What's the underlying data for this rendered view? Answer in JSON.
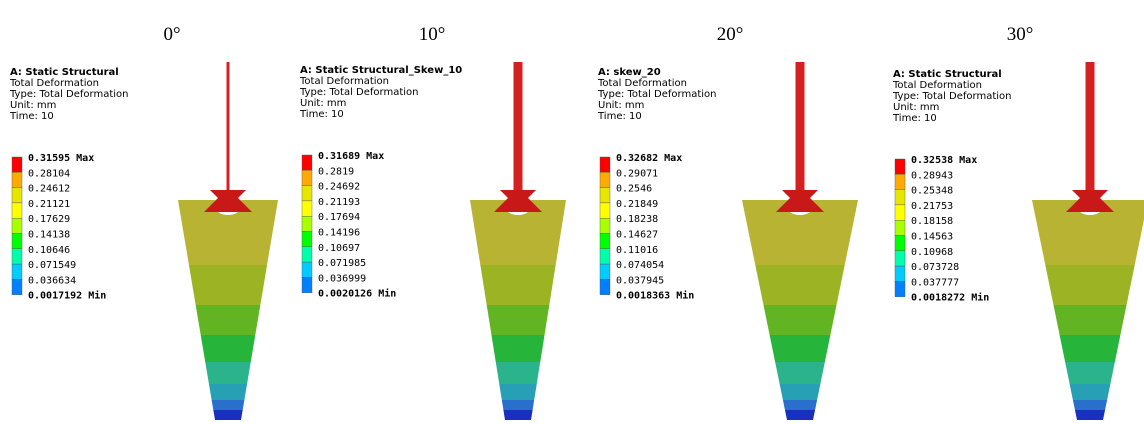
{
  "panels": [
    {
      "angle": "0°",
      "title": "A: Static Structural",
      "lines": [
        "Total Deformation",
        "Type: Total Deformation",
        "Unit: mm",
        "Time: 10"
      ],
      "legend": [
        "0.31595 Max",
        "0.28104",
        "0.24612",
        "0.21121",
        "0.17629",
        "0.14138",
        "0.10646",
        "0.071549",
        "0.036634",
        "0.0017192 Min"
      ]
    },
    {
      "angle": "10°",
      "title": "A: Static Structural_Skew_10",
      "lines": [
        "Total Deformation",
        "Type: Total Deformation",
        "Unit: mm",
        "Time: 10"
      ],
      "legend": [
        "0.31689 Max",
        "0.2819",
        "0.24692",
        "0.21193",
        "0.17694",
        "0.14196",
        "0.10697",
        "0.071985",
        "0.036999",
        "0.0020126 Min"
      ]
    },
    {
      "angle": "20°",
      "title": "A: skew_20",
      "lines": [
        "Total Deformation",
        "Type: Total Deformation",
        "Unit: mm",
        "Time: 10"
      ],
      "legend": [
        "0.32682 Max",
        "0.29071",
        "0.2546",
        "0.21849",
        "0.18238",
        "0.14627",
        "0.11016",
        "0.074054",
        "0.037945",
        "0.0018363 Min"
      ]
    },
    {
      "angle": "30°",
      "title": "A: Static Structural",
      "lines": [
        "Total Deformation",
        "Type: Total Deformation",
        "Unit: mm",
        "Time: 10"
      ],
      "legend": [
        "0.32538 Max",
        "0.28943",
        "0.25348",
        "0.21753",
        "0.18158",
        "0.14563",
        "0.10968",
        "0.073728",
        "0.037777",
        "0.0018272 Min"
      ]
    }
  ]
}
